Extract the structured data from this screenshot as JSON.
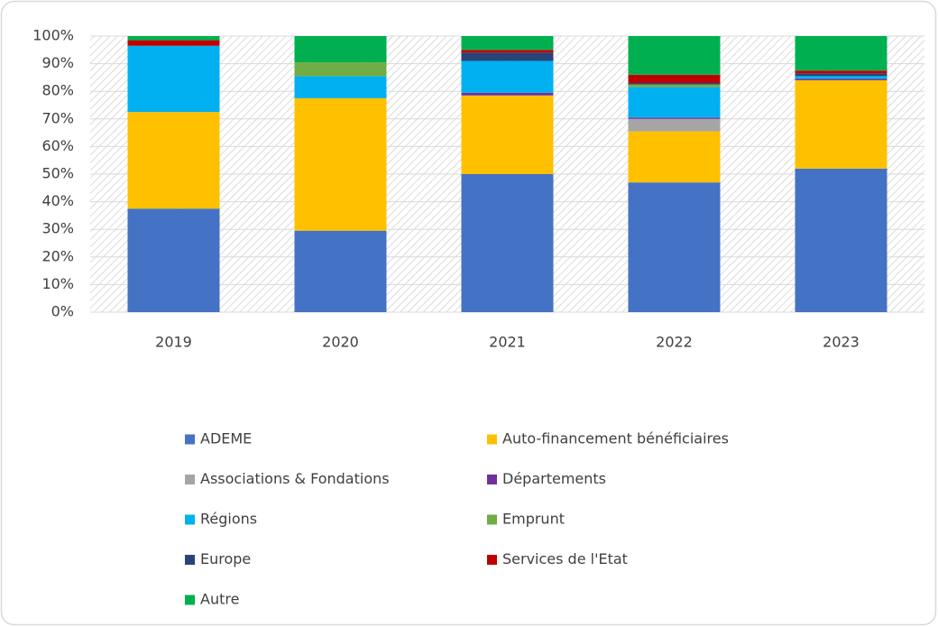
{
  "chart_data": {
    "type": "stacked_bar",
    "categories": [
      "2019",
      "2020",
      "2021",
      "2022",
      "2023"
    ],
    "series": [
      {
        "name": "ADEME",
        "color": "#4472c4",
        "values": [
          37.5,
          29.5,
          50,
          47,
          52
        ]
      },
      {
        "name": "Auto-financement bénéficiaires",
        "color": "#ffc000",
        "values": [
          35,
          48,
          28.5,
          18.5,
          32
        ]
      },
      {
        "name": "Associations & Fondations",
        "color": "#a5a5a5",
        "values": [
          0,
          0,
          0,
          4.5,
          0
        ]
      },
      {
        "name": "Départements",
        "color": "#7030a0",
        "values": [
          0,
          0,
          1,
          0.5,
          0.5
        ]
      },
      {
        "name": "Régions",
        "color": "#00b0f0",
        "values": [
          24,
          8,
          11.5,
          11,
          1
        ]
      },
      {
        "name": "Emprunt",
        "color": "#70ad47",
        "values": [
          0,
          5,
          0,
          1,
          0
        ]
      },
      {
        "name": "Europe",
        "color": "#264478",
        "values": [
          0,
          0,
          3,
          0.5,
          1
        ]
      },
      {
        "name": "Services de l'Etat",
        "color": "#c00000",
        "values": [
          2,
          0,
          1,
          3,
          1
        ]
      },
      {
        "name": "Autre",
        "color": "#00b050",
        "values": [
          1.5,
          9.5,
          5,
          14,
          12.5
        ]
      }
    ],
    "ylim": [
      0,
      100
    ],
    "yticks": [
      {
        "value": 0,
        "label": "0%"
      },
      {
        "value": 10,
        "label": "10%"
      },
      {
        "value": 20,
        "label": "20%"
      },
      {
        "value": 30,
        "label": "30%"
      },
      {
        "value": 40,
        "label": "40%"
      },
      {
        "value": 50,
        "label": "50%"
      },
      {
        "value": 60,
        "label": "60%"
      },
      {
        "value": 70,
        "label": "70%"
      },
      {
        "value": 80,
        "label": "80%"
      },
      {
        "value": 90,
        "label": "90%"
      },
      {
        "value": 100,
        "label": "100%"
      }
    ],
    "grid": true
  }
}
